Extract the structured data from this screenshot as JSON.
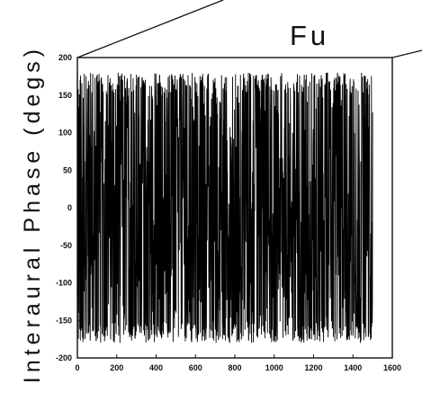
{
  "chart_data": {
    "type": "line",
    "title": "Fu",
    "xlabel": "",
    "ylabel": "Interaural Phase (degs)",
    "xlim": [
      0,
      1600
    ],
    "ylim": [
      -200,
      200
    ],
    "x_ticks": [
      "0",
      "200",
      "400",
      "600",
      "800",
      "1000",
      "1200",
      "1400",
      "1600"
    ],
    "y_ticks": [
      "200",
      "150",
      "100",
      "50",
      "0",
      "-50",
      "-100",
      "-150",
      "-200"
    ],
    "grid": false,
    "legend": "none",
    "series": [
      {
        "x_start": 0,
        "x_end": 1500,
        "sample_count": 1500,
        "value_range": [
          -180,
          180
        ],
        "description_values": "dense oscillation uniformly spanning approximately -180 to 180 degrees"
      }
    ],
    "line_color": "#000000"
  }
}
